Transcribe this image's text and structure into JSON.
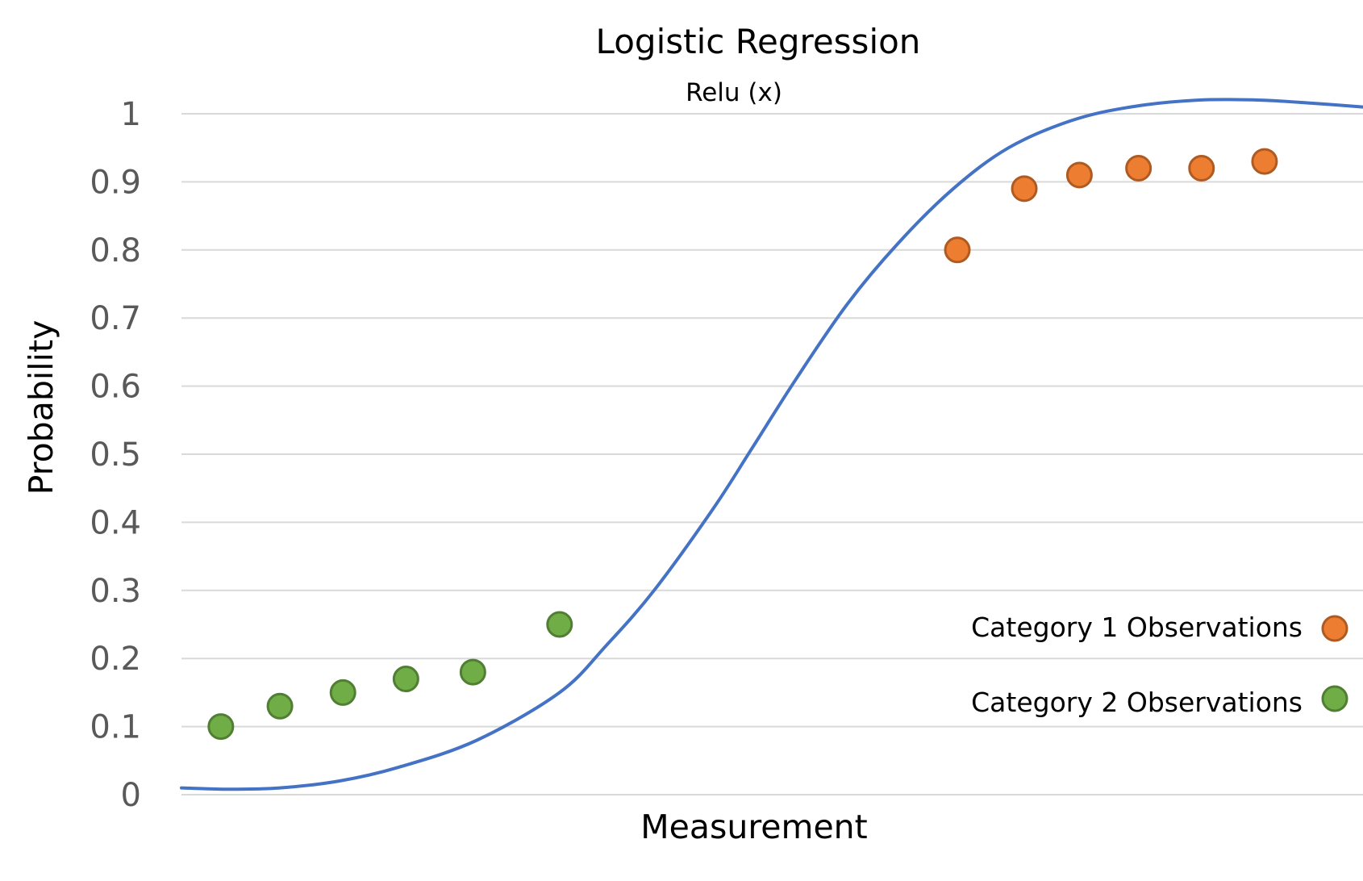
{
  "chart_data": {
    "type": "scatter",
    "title": "Logistic Regression",
    "subtitle": "Relu (x)",
    "xlabel": "Measurement",
    "ylabel": "Probability",
    "ylim": [
      0,
      1
    ],
    "yticks": [
      "0",
      "0.1",
      "0.2",
      "0.3",
      "0.4",
      "0.5",
      "0.6",
      "0.7",
      "0.8",
      "0.9",
      "1"
    ],
    "xlim": [
      0,
      30
    ],
    "grid": true,
    "legend_position": "lower-right",
    "x_ticks_shown": false,
    "series": [
      {
        "name": "Category 1 Observations",
        "kind": "points",
        "color": "#ED7D31",
        "edge_color": "#AE5A21",
        "points": [
          {
            "x": 19.7,
            "y": 0.8
          },
          {
            "x": 21.4,
            "y": 0.89
          },
          {
            "x": 22.8,
            "y": 0.91
          },
          {
            "x": 24.3,
            "y": 0.92
          },
          {
            "x": 25.9,
            "y": 0.92
          },
          {
            "x": 27.5,
            "y": 0.93
          }
        ]
      },
      {
        "name": "Category 2 Observations",
        "kind": "points",
        "color": "#70AD47",
        "edge_color": "#507E32",
        "points": [
          {
            "x": 1.0,
            "y": 0.1
          },
          {
            "x": 2.5,
            "y": 0.13
          },
          {
            "x": 4.1,
            "y": 0.15
          },
          {
            "x": 5.7,
            "y": 0.17
          },
          {
            "x": 7.4,
            "y": 0.18
          },
          {
            "x": 9.6,
            "y": 0.25
          }
        ]
      },
      {
        "kind": "curve",
        "color": "#4472C4",
        "points": [
          {
            "x": 0.0,
            "y": 0.01
          },
          {
            "x": 1.2,
            "y": 0.008
          },
          {
            "x": 2.5,
            "y": 0.01
          },
          {
            "x": 4.0,
            "y": 0.02
          },
          {
            "x": 5.5,
            "y": 0.04
          },
          {
            "x": 7.5,
            "y": 0.08
          },
          {
            "x": 9.6,
            "y": 0.15
          },
          {
            "x": 10.8,
            "y": 0.22
          },
          {
            "x": 12.0,
            "y": 0.3
          },
          {
            "x": 13.5,
            "y": 0.42
          },
          {
            "x": 14.5,
            "y": 0.51
          },
          {
            "x": 15.6,
            "y": 0.61
          },
          {
            "x": 16.9,
            "y": 0.72
          },
          {
            "x": 18.2,
            "y": 0.81
          },
          {
            "x": 19.6,
            "y": 0.89
          },
          {
            "x": 21.0,
            "y": 0.95
          },
          {
            "x": 22.6,
            "y": 0.99
          },
          {
            "x": 24.1,
            "y": 1.01
          },
          {
            "x": 25.8,
            "y": 1.02
          },
          {
            "x": 27.4,
            "y": 1.02
          },
          {
            "x": 28.8,
            "y": 1.015
          },
          {
            "x": 30.0,
            "y": 1.01
          }
        ]
      }
    ]
  }
}
